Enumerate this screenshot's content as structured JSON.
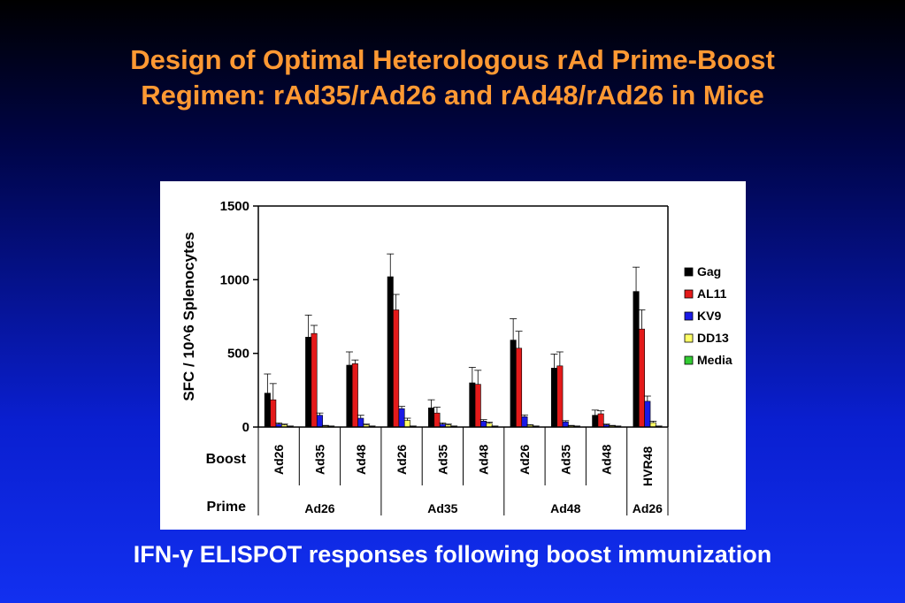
{
  "slide": {
    "title_line1": "Design of Optimal Heterologous rAd Prime-Boost",
    "title_line2": "Regimen: rAd35/rAd26 and rAd48/rAd26 in Mice",
    "caption": "IFN-γ ELISPOT responses following boost immunization"
  },
  "chart_data": {
    "type": "bar",
    "ylabel": "SFC / 10^6 Splenocytes",
    "ylim": [
      0,
      1500
    ],
    "yticks": [
      0,
      500,
      1000,
      1500
    ],
    "boost_row_label": "Boost",
    "prime_row_label": "Prime",
    "categories": [
      "Ad26",
      "Ad35",
      "Ad48",
      "Ad26",
      "Ad35",
      "Ad48",
      "Ad26",
      "Ad35",
      "Ad48",
      "HVR48"
    ],
    "prime_groups": [
      {
        "label": "Ad26",
        "count": 3
      },
      {
        "label": "Ad35",
        "count": 3
      },
      {
        "label": "Ad48",
        "count": 3
      },
      {
        "label": "Ad26",
        "count": 1
      }
    ],
    "legend_position": "right",
    "series": [
      {
        "name": "Gag",
        "color": "#000000",
        "values": [
          230,
          610,
          420,
          1020,
          130,
          300,
          590,
          400,
          80,
          920
        ],
        "errors": [
          130,
          150,
          90,
          155,
          55,
          105,
          145,
          95,
          35,
          165
        ]
      },
      {
        "name": "AL11",
        "color": "#e41a1a",
        "values": [
          185,
          635,
          430,
          795,
          95,
          290,
          535,
          415,
          90,
          665
        ],
        "errors": [
          110,
          55,
          25,
          105,
          40,
          95,
          115,
          95,
          20,
          130
        ]
      },
      {
        "name": "KV9",
        "color": "#1a1ae6",
        "values": [
          20,
          80,
          60,
          125,
          20,
          40,
          70,
          35,
          15,
          175
        ],
        "errors": [
          8,
          15,
          20,
          15,
          8,
          10,
          12,
          8,
          5,
          35
        ]
      },
      {
        "name": "DD13",
        "color": "#ffff66",
        "values": [
          15,
          8,
          15,
          45,
          15,
          25,
          12,
          8,
          8,
          30
        ],
        "errors": [
          5,
          3,
          5,
          15,
          5,
          8,
          4,
          3,
          3,
          10
        ]
      },
      {
        "name": "Media",
        "color": "#33cc33",
        "values": [
          5,
          5,
          5,
          5,
          5,
          5,
          5,
          5,
          5,
          5
        ],
        "errors": [
          2,
          2,
          2,
          2,
          2,
          2,
          2,
          2,
          2,
          2
        ]
      }
    ]
  }
}
